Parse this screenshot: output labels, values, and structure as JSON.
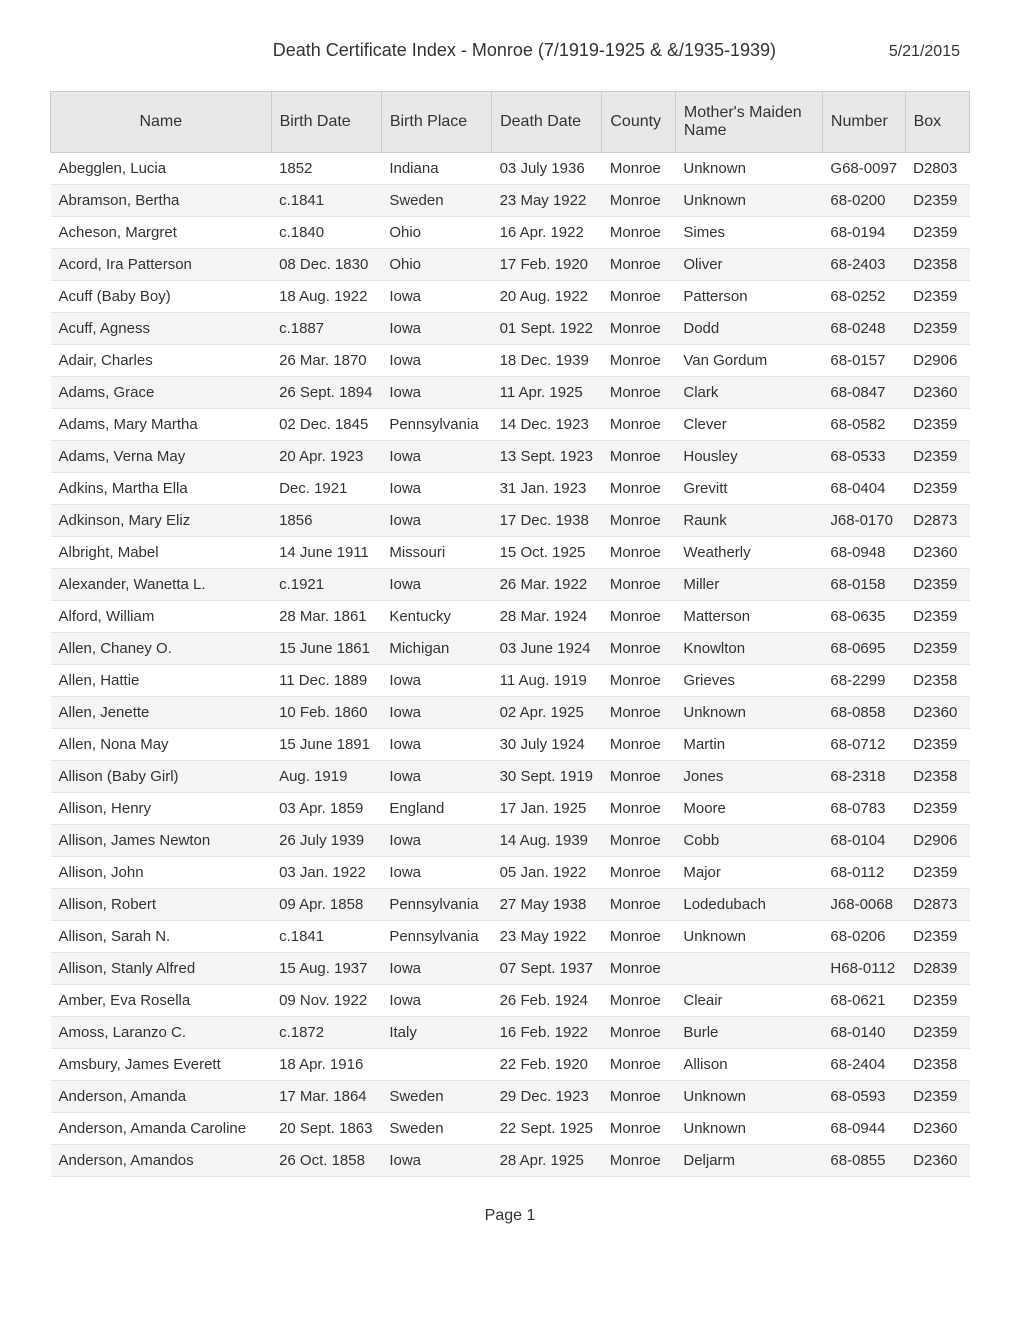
{
  "header": {
    "title": "Death Certificate Index - Monroe (7/1919-1925 & &/1935-1939)",
    "date": "5/21/2015"
  },
  "table": {
    "columns": [
      "Name",
      "Birth Date",
      "Birth Place",
      "Death Date",
      "County",
      "Mother's Maiden Name",
      "Number",
      "Box"
    ],
    "rows": [
      [
        "Abegglen, Lucia",
        "1852",
        "Indiana",
        "03 July 1936",
        "Monroe",
        "Unknown",
        "G68-0097",
        "D2803"
      ],
      [
        "Abramson, Bertha",
        "c.1841",
        "Sweden",
        "23 May 1922",
        "Monroe",
        "Unknown",
        "68-0200",
        "D2359"
      ],
      [
        "Acheson, Margret",
        "c.1840",
        "Ohio",
        "16 Apr. 1922",
        "Monroe",
        "Simes",
        "68-0194",
        "D2359"
      ],
      [
        "Acord, Ira Patterson",
        "08 Dec. 1830",
        "Ohio",
        "17 Feb. 1920",
        "Monroe",
        "Oliver",
        "68-2403",
        "D2358"
      ],
      [
        "Acuff (Baby Boy)",
        "18 Aug. 1922",
        "Iowa",
        "20 Aug. 1922",
        "Monroe",
        "Patterson",
        "68-0252",
        "D2359"
      ],
      [
        "Acuff, Agness",
        "c.1887",
        "Iowa",
        "01 Sept. 1922",
        "Monroe",
        "Dodd",
        "68-0248",
        "D2359"
      ],
      [
        "Adair, Charles",
        "26 Mar. 1870",
        "Iowa",
        "18 Dec. 1939",
        "Monroe",
        "Van Gordum",
        "68-0157",
        "D2906"
      ],
      [
        "Adams, Grace",
        "26 Sept. 1894",
        "Iowa",
        "11 Apr. 1925",
        "Monroe",
        "Clark",
        "68-0847",
        "D2360"
      ],
      [
        "Adams, Mary Martha",
        "02 Dec. 1845",
        "Pennsylvania",
        "14 Dec. 1923",
        "Monroe",
        "Clever",
        "68-0582",
        "D2359"
      ],
      [
        "Adams, Verna May",
        "20 Apr. 1923",
        "Iowa",
        "13 Sept. 1923",
        "Monroe",
        "Housley",
        "68-0533",
        "D2359"
      ],
      [
        "Adkins, Martha Ella",
        "Dec. 1921",
        "Iowa",
        "31 Jan. 1923",
        "Monroe",
        "Grevitt",
        "68-0404",
        "D2359"
      ],
      [
        "Adkinson, Mary Eliz",
        "1856",
        "Iowa",
        "17 Dec. 1938",
        "Monroe",
        "Raunk",
        "J68-0170",
        "D2873"
      ],
      [
        "Albright, Mabel",
        "14 June 1911",
        "Missouri",
        "15 Oct. 1925",
        "Monroe",
        "Weatherly",
        "68-0948",
        "D2360"
      ],
      [
        "Alexander, Wanetta L.",
        "c.1921",
        "Iowa",
        "26 Mar. 1922",
        "Monroe",
        "Miller",
        "68-0158",
        "D2359"
      ],
      [
        "Alford, William",
        "28 Mar. 1861",
        "Kentucky",
        "28 Mar. 1924",
        "Monroe",
        "Matterson",
        "68-0635",
        "D2359"
      ],
      [
        "Allen, Chaney O.",
        "15 June 1861",
        "Michigan",
        "03 June 1924",
        "Monroe",
        "Knowlton",
        "68-0695",
        "D2359"
      ],
      [
        "Allen, Hattie",
        "11 Dec. 1889",
        "Iowa",
        "11 Aug. 1919",
        "Monroe",
        "Grieves",
        "68-2299",
        "D2358"
      ],
      [
        "Allen, Jenette",
        "10 Feb. 1860",
        "Iowa",
        "02 Apr. 1925",
        "Monroe",
        "Unknown",
        "68-0858",
        "D2360"
      ],
      [
        "Allen, Nona May",
        "15 June 1891",
        "Iowa",
        "30 July 1924",
        "Monroe",
        "Martin",
        "68-0712",
        "D2359"
      ],
      [
        "Allison (Baby Girl)",
        "Aug. 1919",
        "Iowa",
        "30 Sept. 1919",
        "Monroe",
        "Jones",
        "68-2318",
        "D2358"
      ],
      [
        "Allison, Henry",
        "03 Apr. 1859",
        "England",
        "17 Jan. 1925",
        "Monroe",
        "Moore",
        "68-0783",
        "D2359"
      ],
      [
        "Allison, James Newton",
        "26 July 1939",
        "Iowa",
        "14 Aug. 1939",
        "Monroe",
        "Cobb",
        "68-0104",
        "D2906"
      ],
      [
        "Allison, John",
        "03 Jan. 1922",
        "Iowa",
        "05 Jan. 1922",
        "Monroe",
        "Major",
        "68-0112",
        "D2359"
      ],
      [
        "Allison, Robert",
        "09 Apr. 1858",
        "Pennsylvania",
        "27 May 1938",
        "Monroe",
        "Lodedubach",
        "J68-0068",
        "D2873"
      ],
      [
        "Allison, Sarah N.",
        "c.1841",
        "Pennsylvania",
        "23 May 1922",
        "Monroe",
        "Unknown",
        "68-0206",
        "D2359"
      ],
      [
        "Allison, Stanly Alfred",
        "15 Aug. 1937",
        "Iowa",
        "07 Sept. 1937",
        "Monroe",
        "",
        "H68-0112",
        "D2839"
      ],
      [
        "Amber, Eva Rosella",
        "09 Nov. 1922",
        "Iowa",
        "26 Feb. 1924",
        "Monroe",
        "Cleair",
        "68-0621",
        "D2359"
      ],
      [
        "Amoss, Laranzo C.",
        "c.1872",
        "Italy",
        "16 Feb. 1922",
        "Monroe",
        "Burle",
        "68-0140",
        "D2359"
      ],
      [
        "Amsbury, James Everett",
        "18 Apr. 1916",
        "",
        "22 Feb. 1920",
        "Monroe",
        "Allison",
        "68-2404",
        "D2358"
      ],
      [
        "Anderson, Amanda",
        "17 Mar. 1864",
        "Sweden",
        "29 Dec. 1923",
        "Monroe",
        "Unknown",
        "68-0593",
        "D2359"
      ],
      [
        "Anderson, Amanda Caroline",
        "20 Sept. 1863",
        "Sweden",
        "22 Sept. 1925",
        "Monroe",
        "Unknown",
        "68-0944",
        "D2360"
      ],
      [
        "Anderson, Amandos",
        "26 Oct. 1858",
        "Iowa",
        "28 Apr. 1925",
        "Monroe",
        "Deljarm",
        "68-0855",
        "D2360"
      ]
    ]
  },
  "footer": {
    "page": "Page 1"
  },
  "styling": {
    "header_bg": "#e8e8e8",
    "row_even_bg": "#f5f5f5",
    "row_odd_bg": "#ffffff",
    "border_color": "#cccccc",
    "row_border_color": "#e5e5e5",
    "text_color": "#333333",
    "font_family": "Arial, Helvetica, sans-serif",
    "title_fontsize": 18,
    "body_fontsize": 15,
    "header_fontsize": 16
  }
}
